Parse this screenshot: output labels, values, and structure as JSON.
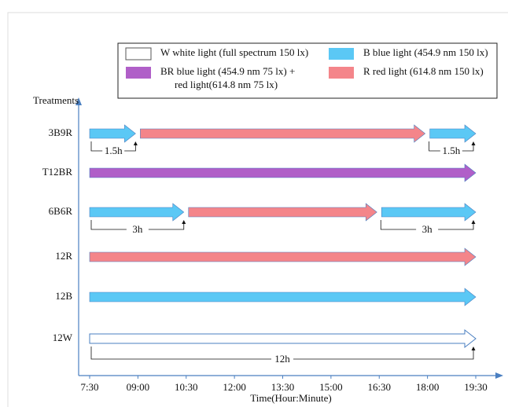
{
  "axis": {
    "y_title": "Treatments",
    "x_title": "Time(Hour:Minute)",
    "xlim": [
      7.5,
      19.5
    ],
    "xticks": [
      {
        "value": 7.5,
        "label": "7:30"
      },
      {
        "value": 9,
        "label": "09:00"
      },
      {
        "value": 10.5,
        "label": "10:30"
      },
      {
        "value": 12,
        "label": "12:00"
      },
      {
        "value": 13.5,
        "label": "13:30"
      },
      {
        "value": 15,
        "label": "15:00"
      },
      {
        "value": 16.5,
        "label": "16:30"
      },
      {
        "value": 18,
        "label": "18:00"
      },
      {
        "value": 19.5,
        "label": "19:30"
      }
    ]
  },
  "legend": [
    {
      "key": "W",
      "lines": [
        "W white light (full spectrum 150 lx)"
      ],
      "color": "#ffffff"
    },
    {
      "key": "B",
      "lines": [
        "B blue light (454.9 nm 150 lx)"
      ],
      "color": "#5bc8f5"
    },
    {
      "key": "BR",
      "lines": [
        "BR blue light (454.9 nm 75 lx) +",
        "red light(614.8 nm 75 lx)"
      ],
      "color": "#b05fc8"
    },
    {
      "key": "R",
      "lines": [
        "R red light (614.8 nm 150 lx)"
      ],
      "color": "#f4858a"
    }
  ],
  "treatments": [
    {
      "label": "3B9R",
      "segments": [
        {
          "start": 7.5,
          "end": 9,
          "light": "B"
        },
        {
          "start": 9,
          "end": 18,
          "light": "R"
        },
        {
          "start": 18,
          "end": 19.5,
          "light": "B"
        }
      ],
      "brackets": [
        {
          "start": 7.5,
          "end": 9,
          "label": "1.5h"
        },
        {
          "start": 18,
          "end": 19.5,
          "label": "1.5h"
        }
      ]
    },
    {
      "label": "T12BR",
      "segments": [
        {
          "start": 7.5,
          "end": 19.5,
          "light": "BR"
        }
      ],
      "brackets": []
    },
    {
      "label": "6B6R",
      "segments": [
        {
          "start": 7.5,
          "end": 10.5,
          "light": "B"
        },
        {
          "start": 10.5,
          "end": 16.5,
          "light": "R"
        },
        {
          "start": 16.5,
          "end": 19.5,
          "light": "B"
        }
      ],
      "brackets": [
        {
          "start": 7.5,
          "end": 10.5,
          "label": "3h"
        },
        {
          "start": 16.5,
          "end": 19.5,
          "label": "3h"
        }
      ]
    },
    {
      "label": "12R",
      "segments": [
        {
          "start": 7.5,
          "end": 19.5,
          "light": "R"
        }
      ],
      "brackets": []
    },
    {
      "label": "12B",
      "segments": [
        {
          "start": 7.5,
          "end": 19.5,
          "light": "B"
        }
      ],
      "brackets": []
    },
    {
      "label": "12W",
      "segments": [
        {
          "start": 7.5,
          "end": 19.5,
          "light": "W"
        }
      ],
      "brackets": [
        {
          "start": 7.5,
          "end": 19.5,
          "label": "12h"
        }
      ]
    }
  ]
}
